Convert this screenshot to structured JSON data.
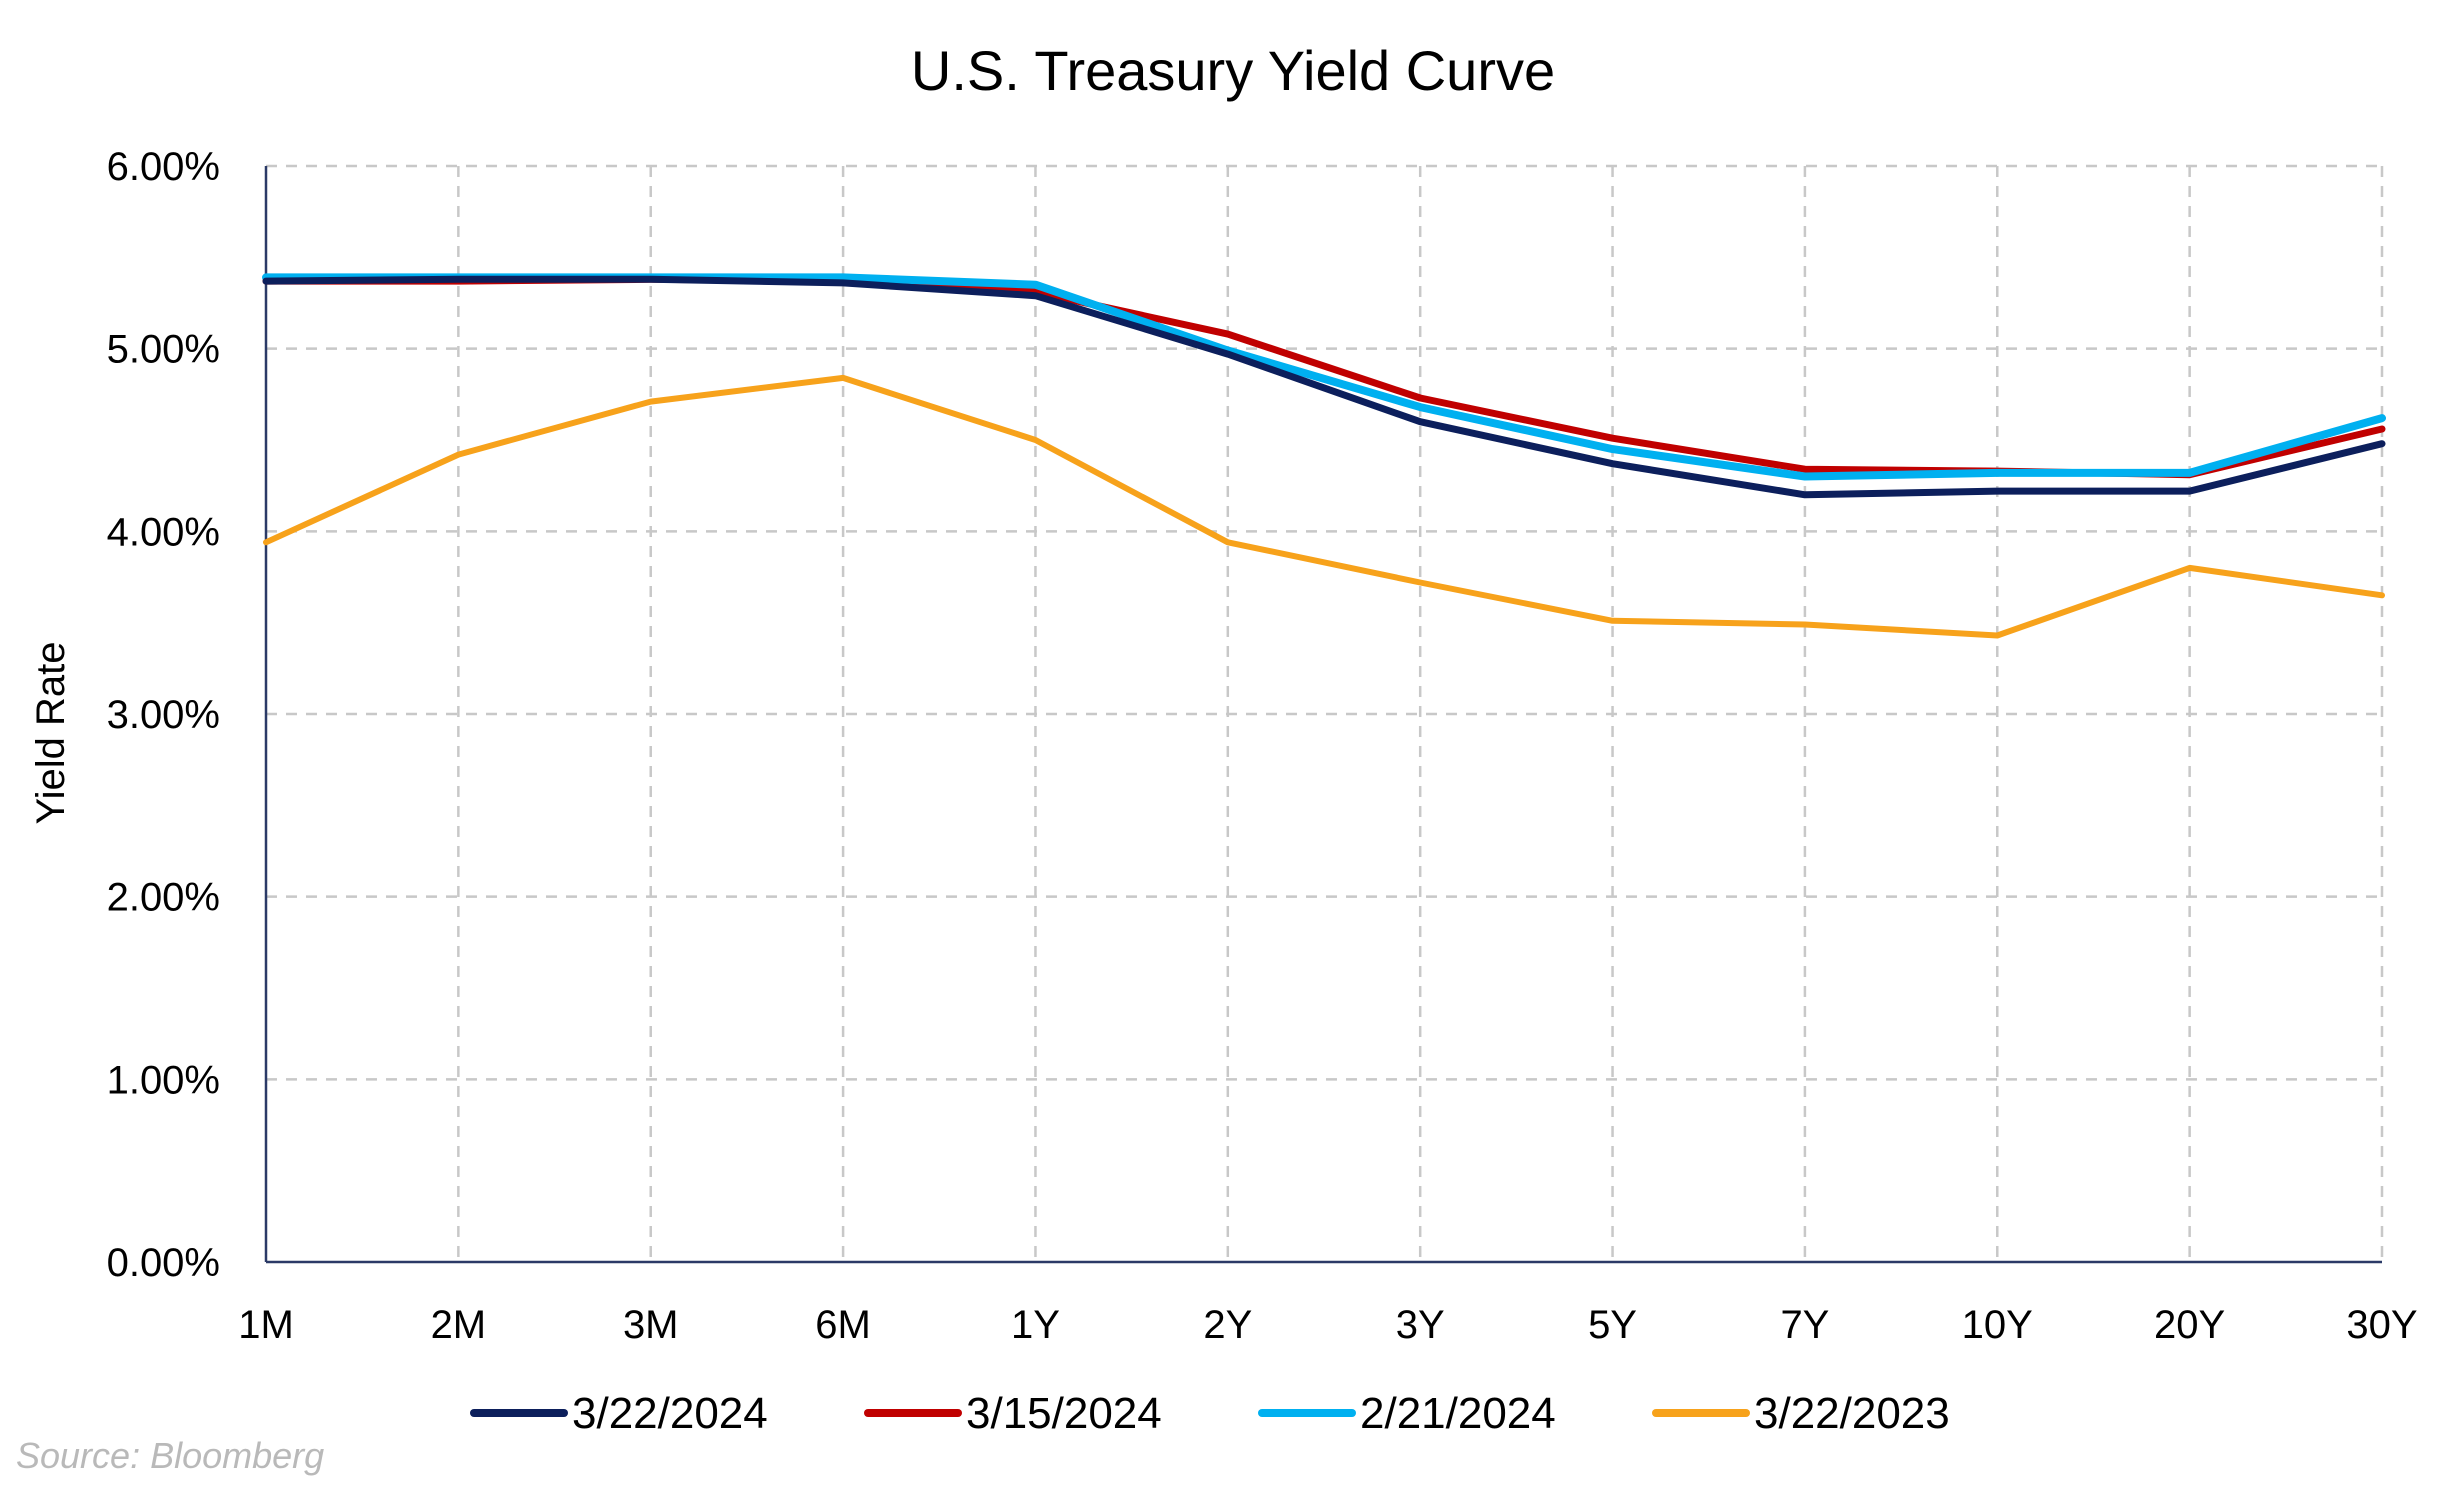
{
  "chart_data": {
    "type": "line",
    "title": "U.S. Treasury Yield Curve",
    "xlabel": "",
    "ylabel": "Yield Rate",
    "categories": [
      "1M",
      "2M",
      "3M",
      "6M",
      "1Y",
      "2Y",
      "3Y",
      "5Y",
      "7Y",
      "10Y",
      "20Y",
      "30Y"
    ],
    "ylim": [
      0,
      6
    ],
    "yticks": [
      0,
      1,
      2,
      3,
      4,
      5,
      6
    ],
    "ytick_labels": [
      "0.00%",
      "1.00%",
      "2.00%",
      "3.00%",
      "4.00%",
      "5.00%",
      "6.00%"
    ],
    "grid": true,
    "legend_position": "bottom",
    "series": [
      {
        "name": "3/22/2024",
        "color": "#0c1f5c",
        "values": [
          5.37,
          5.38,
          5.38,
          5.36,
          5.29,
          4.97,
          4.6,
          4.37,
          4.2,
          4.22,
          4.22,
          4.48
        ]
      },
      {
        "name": "3/15/2024",
        "color": "#c00000",
        "values": [
          5.37,
          5.37,
          5.38,
          5.37,
          5.31,
          5.08,
          4.73,
          4.51,
          4.34,
          4.33,
          4.31,
          4.56
        ]
      },
      {
        "name": "2/21/2024",
        "color": "#00b0f0",
        "values": [
          5.39,
          5.39,
          5.39,
          5.39,
          5.35,
          4.99,
          4.68,
          4.45,
          4.3,
          4.32,
          4.32,
          4.62
        ]
      },
      {
        "name": "3/22/2023",
        "color": "#f7a21b",
        "values": [
          3.94,
          4.42,
          4.71,
          4.84,
          4.5,
          3.94,
          3.72,
          3.51,
          3.49,
          3.43,
          3.8,
          3.65
        ]
      }
    ],
    "source": "Source: Bloomberg"
  }
}
